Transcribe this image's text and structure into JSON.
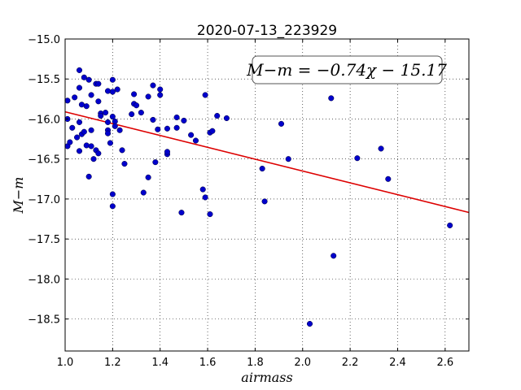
{
  "chart_data": {
    "type": "scatter",
    "title": "2020-07-13_223929",
    "xlabel": "airmass",
    "ylabel": "M−m",
    "xlim": [
      1.0,
      2.7
    ],
    "ylim": [
      -15.0,
      -18.9
    ],
    "y_inverted": true,
    "grid": true,
    "x_ticks": [
      "1.0",
      "1.2",
      "1.4",
      "1.6",
      "1.8",
      "2.0",
      "2.2",
      "2.4",
      "2.6"
    ],
    "y_ticks": [
      "−15.0",
      "−15.5",
      "−16.0",
      "−16.5",
      "−17.0",
      "−17.5",
      "−18.0",
      "−18.5"
    ],
    "annotation": "M−m = −0.74χ − 15.17",
    "fit": {
      "slope": -0.74,
      "intercept": -15.17,
      "color": "#dd0000"
    },
    "marker_color": "#0000cc",
    "points": [
      [
        1.01,
        -15.77
      ],
      [
        1.01,
        -16.0
      ],
      [
        1.01,
        -16.34
      ],
      [
        1.02,
        -16.29
      ],
      [
        1.03,
        -16.11
      ],
      [
        1.04,
        -15.73
      ],
      [
        1.05,
        -16.23
      ],
      [
        1.06,
        -15.39
      ],
      [
        1.06,
        -15.61
      ],
      [
        1.06,
        -16.04
      ],
      [
        1.06,
        -16.4
      ],
      [
        1.07,
        -15.82
      ],
      [
        1.07,
        -16.19
      ],
      [
        1.08,
        -15.48
      ],
      [
        1.08,
        -16.16
      ],
      [
        1.09,
        -15.84
      ],
      [
        1.09,
        -16.33
      ],
      [
        1.1,
        -15.51
      ],
      [
        1.1,
        -16.72
      ],
      [
        1.11,
        -15.7
      ],
      [
        1.11,
        -16.14
      ],
      [
        1.11,
        -16.34
      ],
      [
        1.12,
        -16.5
      ],
      [
        1.13,
        -15.56
      ],
      [
        1.13,
        -16.39
      ],
      [
        1.14,
        -15.56
      ],
      [
        1.14,
        -15.78
      ],
      [
        1.14,
        -16.43
      ],
      [
        1.15,
        -15.93
      ],
      [
        1.15,
        -15.96
      ],
      [
        1.17,
        -15.92
      ],
      [
        1.18,
        -15.65
      ],
      [
        1.18,
        -16.04
      ],
      [
        1.18,
        -16.14
      ],
      [
        1.18,
        -16.18
      ],
      [
        1.19,
        -16.3
      ],
      [
        1.2,
        -16.94
      ],
      [
        1.2,
        -17.09
      ],
      [
        1.2,
        -15.51
      ],
      [
        1.2,
        -15.66
      ],
      [
        1.2,
        -15.97
      ],
      [
        1.21,
        -16.03
      ],
      [
        1.21,
        -16.09
      ],
      [
        1.22,
        -15.63
      ],
      [
        1.23,
        -16.14
      ],
      [
        1.24,
        -16.39
      ],
      [
        1.25,
        -16.56
      ],
      [
        1.28,
        -15.94
      ],
      [
        1.29,
        -15.81
      ],
      [
        1.29,
        -15.69
      ],
      [
        1.3,
        -15.83
      ],
      [
        1.32,
        -15.92
      ],
      [
        1.33,
        -16.92
      ],
      [
        1.35,
        -15.72
      ],
      [
        1.35,
        -16.73
      ],
      [
        1.37,
        -15.58
      ],
      [
        1.37,
        -16.01
      ],
      [
        1.38,
        -16.54
      ],
      [
        1.39,
        -16.13
      ],
      [
        1.4,
        -15.7
      ],
      [
        1.4,
        -15.63
      ],
      [
        1.43,
        -16.12
      ],
      [
        1.43,
        -16.44
      ],
      [
        1.43,
        -16.41
      ],
      [
        1.47,
        -15.98
      ],
      [
        1.47,
        -16.11
      ],
      [
        1.49,
        -17.17
      ],
      [
        1.5,
        -16.02
      ],
      [
        1.53,
        -16.2
      ],
      [
        1.55,
        -16.27
      ],
      [
        1.58,
        -16.88
      ],
      [
        1.59,
        -16.98
      ],
      [
        1.59,
        -15.7
      ],
      [
        1.61,
        -16.17
      ],
      [
        1.61,
        -17.19
      ],
      [
        1.62,
        -16.15
      ],
      [
        1.64,
        -15.96
      ],
      [
        1.68,
        -15.99
      ],
      [
        1.83,
        -16.62
      ],
      [
        1.84,
        -17.03
      ],
      [
        1.91,
        -16.06
      ],
      [
        1.94,
        -16.5
      ],
      [
        2.03,
        -18.56
      ],
      [
        2.12,
        -15.74
      ],
      [
        2.13,
        -17.71
      ],
      [
        2.23,
        -16.49
      ],
      [
        2.33,
        -16.37
      ],
      [
        2.36,
        -16.75
      ],
      [
        2.62,
        -17.33
      ]
    ]
  }
}
